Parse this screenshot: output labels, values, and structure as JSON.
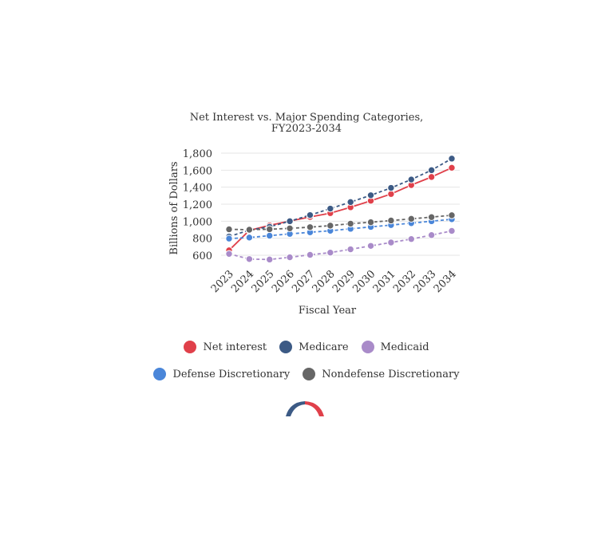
{
  "chart_data": {
    "type": "line",
    "title_line1": "Net Interest vs. Major Spending Categories,",
    "title_line2": "FY2023-2034",
    "xlabel": "Fiscal Year",
    "ylabel": "Billions of Dollars",
    "ylim": [
      600,
      1800
    ],
    "yticks": [
      600,
      800,
      1000,
      1200,
      1400,
      1600,
      1800
    ],
    "ytick_labels": [
      "600",
      "800",
      "1,000",
      "1,200",
      "1,400",
      "1,600",
      "1,800"
    ],
    "categories": [
      "2023",
      "2024",
      "2025",
      "2026",
      "2027",
      "2028",
      "2029",
      "2030",
      "2031",
      "2032",
      "2033",
      "2034"
    ],
    "grid": true,
    "legend_position": "bottom",
    "series": [
      {
        "name": "Net interest",
        "color": "#e0404a",
        "dash": "none",
        "values": [
          658,
          892,
          951,
          1002,
          1050,
          1095,
          1164,
          1240,
          1320,
          1425,
          1520,
          1628
        ]
      },
      {
        "name": "Medicare",
        "color": "#3c5a85",
        "dash": "4,3",
        "values": [
          820,
          895,
          935,
          1000,
          1072,
          1148,
          1225,
          1305,
          1392,
          1490,
          1600,
          1736
        ]
      },
      {
        "name": "Medicaid",
        "color": "#a98bc9",
        "dash": "4,3",
        "values": [
          616,
          555,
          550,
          576,
          605,
          631,
          670,
          710,
          750,
          790,
          837,
          886
        ]
      },
      {
        "name": "Defense Discretionary",
        "color": "#4a86d9",
        "dash": "4,3",
        "values": [
          796,
          808,
          830,
          851,
          870,
          888,
          911,
          933,
          955,
          977,
          1000,
          1023
        ]
      },
      {
        "name": "Nondefense Discretionary",
        "color": "#666666",
        "dash": "4,3",
        "values": [
          905,
          900,
          906,
          916,
          930,
          948,
          971,
          988,
          1008,
          1028,
          1048,
          1070
        ]
      }
    ]
  },
  "legend": {
    "row1": [
      "Net interest",
      "Medicare",
      "Medicaid"
    ],
    "row2": [
      "Defense Discretionary",
      "Nondefense Discretionary"
    ],
    "colors": {
      "Net interest": "#e0404a",
      "Medicare": "#3c5a85",
      "Medicaid": "#a98bc9",
      "Defense Discretionary": "#4a86d9",
      "Nondefense Discretionary": "#666666"
    }
  },
  "logo": {
    "icon": "arch-logo-icon",
    "colors": [
      "#3c5a85",
      "#e0404a"
    ]
  }
}
